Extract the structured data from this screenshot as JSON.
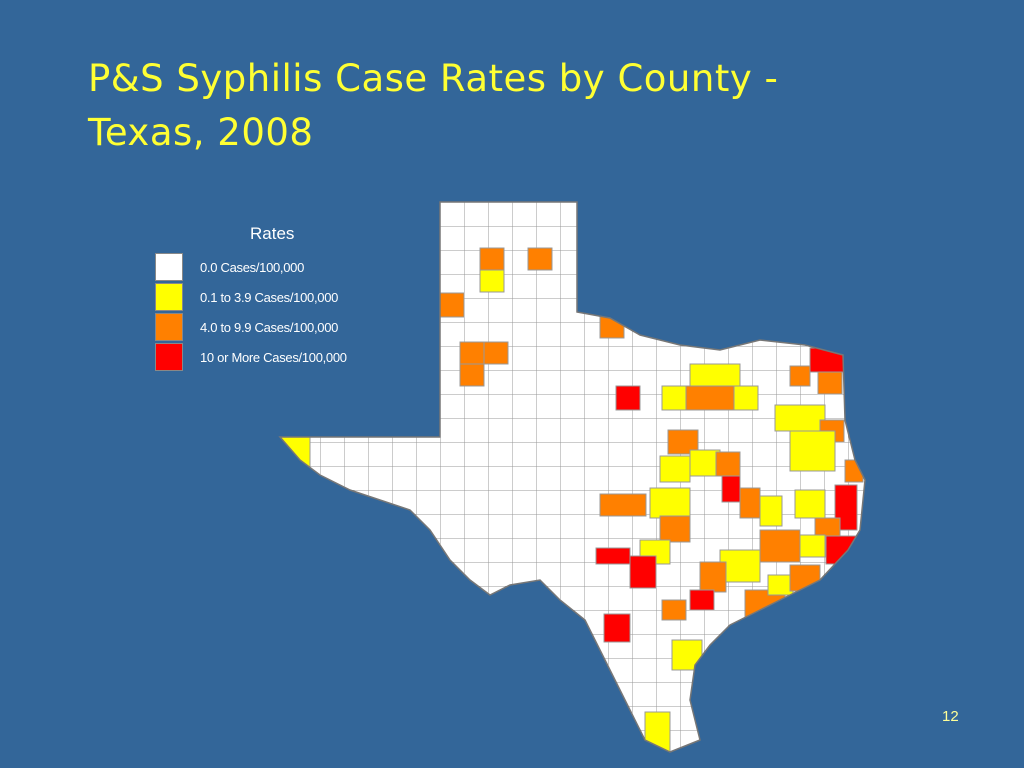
{
  "header": {
    "title_lines": [
      "P&S Syphilis Case Rates by County -",
      "Texas, 2008"
    ]
  },
  "legend": {
    "title": "Rates",
    "items": [
      {
        "label": "0.0 Cases/100,000",
        "color": "#ffffff"
      },
      {
        "label": "0.1 to 3.9 Cases/100,000",
        "color": "#ffff00"
      },
      {
        "label": "4.0 to 9.9 Cases/100,000",
        "color": "#ff8000"
      },
      {
        "label": "10 or More Cases/100,000",
        "color": "#ff0000"
      }
    ]
  },
  "footer": {
    "page_number": "12"
  }
}
